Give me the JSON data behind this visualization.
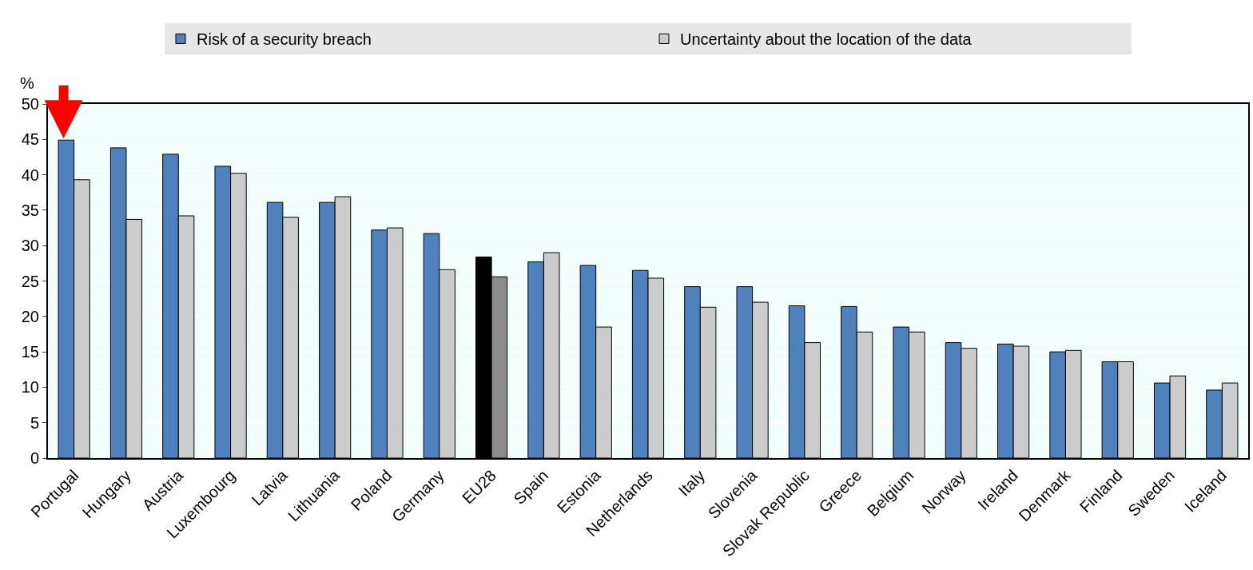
{
  "chart_data": {
    "type": "bar",
    "ylabel": "%",
    "categories": [
      "Portugal",
      "Hungary",
      "Austria",
      "Luxembourg",
      "Latvia",
      "Lithuania",
      "Poland",
      "Germany",
      "EU28",
      "Spain",
      "Estonia",
      "Netherlands",
      "Italy",
      "Slovenia",
      "Slovak Republic",
      "Greece",
      "Belgium",
      "Norway",
      "Ireland",
      "Denmark",
      "Finland",
      "Sweden",
      "Iceland"
    ],
    "series": [
      {
        "name": "Risk of a security breach",
        "color": "#4f81bd",
        "colors": [
          "#4f81bd",
          "#4f81bd",
          "#4f81bd",
          "#4f81bd",
          "#4f81bd",
          "#4f81bd",
          "#4f81bd",
          "#4f81bd",
          "#000000",
          "#4f81bd",
          "#4f81bd",
          "#4f81bd",
          "#4f81bd",
          "#4f81bd",
          "#4f81bd",
          "#4f81bd",
          "#4f81bd",
          "#4f81bd",
          "#4f81bd",
          "#4f81bd",
          "#4f81bd",
          "#4f81bd",
          "#4f81bd"
        ],
        "values": [
          44.9,
          43.8,
          42.9,
          41.2,
          36.1,
          36.1,
          32.2,
          31.7,
          28.4,
          27.7,
          27.2,
          26.5,
          24.2,
          24.2,
          21.5,
          21.4,
          18.5,
          16.3,
          16.1,
          15.0,
          13.6,
          10.6,
          9.6
        ]
      },
      {
        "name": "Uncertainty about the location of the data",
        "color": "#cccccc",
        "colors": [
          "#cccccc",
          "#cccccc",
          "#cccccc",
          "#cccccc",
          "#cccccc",
          "#cccccc",
          "#cccccc",
          "#cccccc",
          "#8c8c8c",
          "#cccccc",
          "#cccccc",
          "#cccccc",
          "#cccccc",
          "#cccccc",
          "#cccccc",
          "#cccccc",
          "#cccccc",
          "#cccccc",
          "#cccccc",
          "#cccccc",
          "#cccccc",
          "#cccccc",
          "#cccccc"
        ],
        "values": [
          39.3,
          33.7,
          34.2,
          40.2,
          34.0,
          36.9,
          32.5,
          26.6,
          25.6,
          29.0,
          18.5,
          25.4,
          21.3,
          22.0,
          16.3,
          17.8,
          17.8,
          15.5,
          15.8,
          15.2,
          13.6,
          11.6,
          10.6
        ]
      }
    ],
    "ylim": [
      0,
      50
    ],
    "yticks": [
      0,
      5,
      10,
      15,
      20,
      25,
      30,
      35,
      40,
      45,
      50
    ],
    "grid": "y",
    "legend": "top"
  }
}
